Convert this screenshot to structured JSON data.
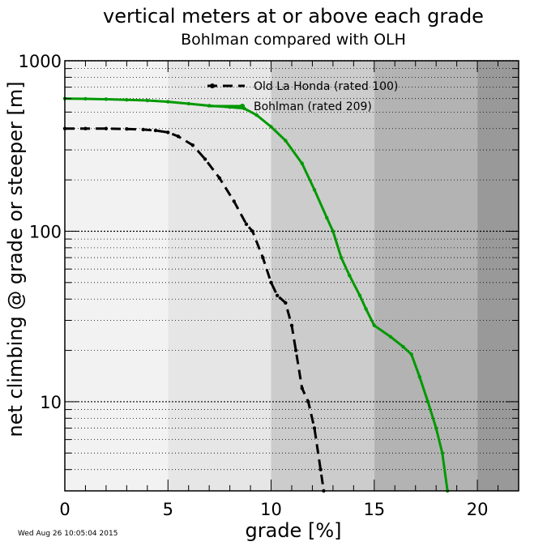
{
  "chart_data": {
    "type": "line",
    "title": "vertical meters at or above each grade",
    "subtitle": "Bohlman compared with OLH",
    "xlabel": "grade [%]",
    "ylabel": "net climbing @ grade or steeper [m]",
    "xlim": [
      0,
      22
    ],
    "ylim": [
      3,
      1000
    ],
    "yscale": "log",
    "grid": "horizontal dotted at minor and major decades",
    "x_ticks": [
      "0",
      "5",
      "10",
      "15",
      "20"
    ],
    "y_ticks": [
      "10",
      "100",
      "1000"
    ],
    "background_bands": [
      {
        "from": 0,
        "to": 5,
        "color": "#f2f2f2"
      },
      {
        "from": 5,
        "to": 10,
        "color": "#e6e6e6"
      },
      {
        "from": 10,
        "to": 15,
        "color": "#cccccc"
      },
      {
        "from": 15,
        "to": 20,
        "color": "#b3b3b3"
      },
      {
        "from": 20,
        "to": 22,
        "color": "#999999"
      }
    ],
    "legend_position": "top-center",
    "series": [
      {
        "name": "Old La Honda (rated 100)",
        "color": "#000000",
        "style": "dashed",
        "points": [
          [
            0,
            400
          ],
          [
            1,
            400
          ],
          [
            2,
            400
          ],
          [
            3,
            398
          ],
          [
            3.8,
            395
          ],
          [
            4.4,
            390
          ],
          [
            5,
            380
          ],
          [
            5.5,
            360
          ],
          [
            6.2,
            320
          ],
          [
            6.8,
            265
          ],
          [
            7.5,
            205
          ],
          [
            8.2,
            150
          ],
          [
            8.8,
            110
          ],
          [
            9.1,
            100
          ],
          [
            9.6,
            70
          ],
          [
            10,
            50
          ],
          [
            10.3,
            42
          ],
          [
            10.7,
            38
          ],
          [
            11,
            28
          ],
          [
            11.2,
            20
          ],
          [
            11.5,
            12
          ],
          [
            11.8,
            10
          ],
          [
            12.1,
            7
          ],
          [
            12.4,
            4
          ],
          [
            12.55,
            3
          ]
        ]
      },
      {
        "name": "Bohlman (rated 209)",
        "color": "#009900",
        "style": "solid",
        "points": [
          [
            0,
            600
          ],
          [
            1,
            598
          ],
          [
            2,
            595
          ],
          [
            3,
            590
          ],
          [
            4,
            585
          ],
          [
            5,
            575
          ],
          [
            6,
            560
          ],
          [
            7,
            545
          ],
          [
            8,
            535
          ],
          [
            8.7,
            525
          ],
          [
            9.3,
            480
          ],
          [
            10,
            410
          ],
          [
            10.7,
            340
          ],
          [
            11.5,
            250
          ],
          [
            12.1,
            175
          ],
          [
            12.7,
            120
          ],
          [
            13,
            100
          ],
          [
            13.4,
            70
          ],
          [
            13.8,
            55
          ],
          [
            14.3,
            42
          ],
          [
            14.6,
            35
          ],
          [
            15,
            28
          ],
          [
            15.8,
            24
          ],
          [
            16.4,
            21
          ],
          [
            16.8,
            19
          ],
          [
            17.2,
            14
          ],
          [
            17.6,
            10
          ],
          [
            18,
            7
          ],
          [
            18.3,
            5
          ],
          [
            18.55,
            3
          ]
        ]
      }
    ]
  },
  "timestamp": "Wed Aug 26 10:05:04 2015"
}
